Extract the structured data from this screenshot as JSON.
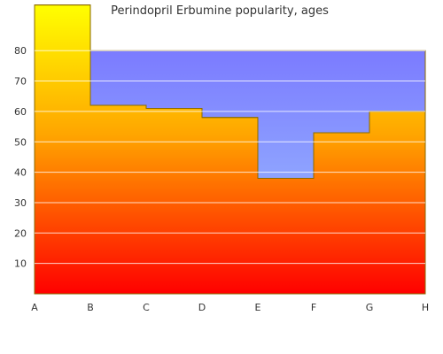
{
  "chart_data": {
    "type": "area",
    "title": "Perindopril Erbumine popularity, ages",
    "xlabel": "",
    "ylabel": "",
    "categories": [
      "A",
      "B",
      "C",
      "D",
      "E",
      "F",
      "G",
      "H"
    ],
    "y_ticks": [
      10,
      20,
      30,
      40,
      50,
      60,
      70,
      80
    ],
    "ylim": [
      0,
      95
    ],
    "grid": true,
    "step": true,
    "series": [
      {
        "values": [
          95,
          62,
          61,
          58,
          38,
          53,
          60,
          60
        ]
      }
    ],
    "band": {
      "from": 0,
      "to": 80
    },
    "colors": {
      "gradient_top": "#ffff00",
      "gradient_mid": "#ffa500",
      "gradient_bottom": "#ff0000",
      "band_top": "#7b7bff",
      "band_bottom": "#a0c8ff",
      "outline": "#8a6a00",
      "grid": "#ffffff"
    }
  }
}
